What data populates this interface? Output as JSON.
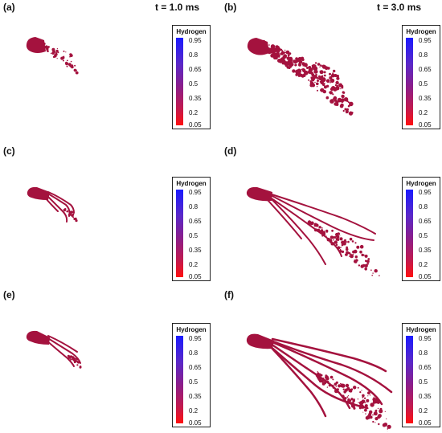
{
  "time_labels": [
    "t = 1.0 ms",
    "t = 3.0 ms"
  ],
  "panels": [
    {
      "label": "(a)"
    },
    {
      "label": "(b)"
    },
    {
      "label": "(c)"
    },
    {
      "label": "(d)"
    },
    {
      "label": "(e)"
    },
    {
      "label": "(f)"
    }
  ],
  "legend": {
    "title": "Hydrogen",
    "ticks": [
      "0.95",
      "0.8",
      "0.65",
      "0.5",
      "0.35",
      "0.2",
      "0.05"
    ],
    "colors": {
      "top": "#1a1aff",
      "bottom": "#ff1010"
    }
  },
  "spray_color": "#a4123e"
}
